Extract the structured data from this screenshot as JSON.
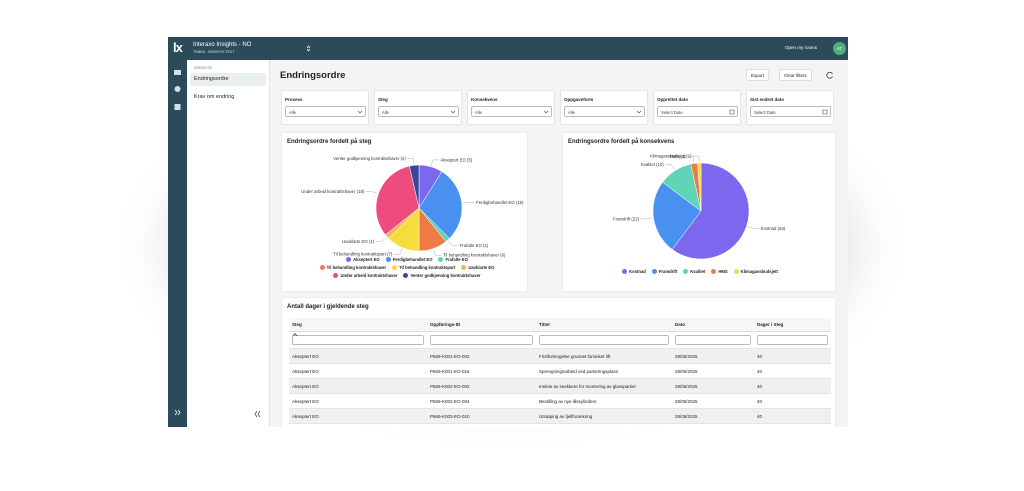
{
  "header": {
    "logo": "lx",
    "app_title": "Interaxo Insights - NO",
    "subtitle": "TRØBA - INSIGHTS TEST",
    "open_rooms": "Open my rooms",
    "avatar": "AT"
  },
  "sidebar": {
    "section": "INSIGHTS",
    "items": [
      "Endringsordre",
      "Krav om endring"
    ]
  },
  "page": {
    "title": "Endringsordre",
    "buttons": [
      "Export",
      "Clear filters"
    ]
  },
  "filters": [
    {
      "label": "Prosess",
      "value": "Alle"
    },
    {
      "label": "Steg",
      "value": "Alle"
    },
    {
      "label": "Konsekvens",
      "value": "Alle"
    },
    {
      "label": "Oppgaveform",
      "value": "Alle"
    },
    {
      "label": "Opprettet dato",
      "value": "Select Date"
    },
    {
      "label": "Sist endret dato",
      "value": "Select Date"
    }
  ],
  "chart_data": [
    {
      "type": "pie",
      "title": "Endringsordre fordelt på steg",
      "categories": [
        "Akseptert EO",
        "Ferdigbehandlet EO",
        "Frafalte EO",
        "Til behandling kontraktshaver",
        "Til behandling kontraktspart",
        "Uavklarte EO",
        "Under arbeid kontraktshaver",
        "Venter godkjenning kontraktshaver"
      ],
      "values": [
        5,
        16,
        1,
        6,
        7,
        1,
        18,
        2
      ],
      "value_labels": [
        "Akseptert EO (5)",
        "Ferdigbehandlet EO (16)",
        "Frafalte EO (1)",
        "Til behandling kontraktshaver (6)",
        "Til behandling kontraktspart (7)",
        "Uavklarte EO (1)",
        "Under arbeid kontraktshaver (18)",
        "Venter godkjenning kontraktshaver (2)"
      ],
      "colors": [
        "#7b68ee",
        "#4a90f0",
        "#5fd4b6",
        "#ee7a45",
        "#f6dc3c",
        "#f4b45c",
        "#ee4c7c",
        "#37479e"
      ],
      "legend": true
    },
    {
      "type": "pie",
      "title": "Endringsordre fordelt på konsekvens",
      "categories": [
        "Kostnad",
        "Framdrift",
        "Kvalitet",
        "HMS",
        "Klimagassbudsjett"
      ],
      "values": [
        53,
        22,
        10,
        2,
        1
      ],
      "value_labels": [
        "Kostnad (53)",
        "Framdrift (22)",
        "Kvalitet (10)",
        "HMS (2)",
        "Klimagassbudsjett (1)"
      ],
      "colors": [
        "#7b68ee",
        "#4a90f0",
        "#5fd4b6",
        "#ee7a45",
        "#f6dc3c"
      ],
      "legend": true
    }
  ],
  "table": {
    "title": "Antall dager i gjeldende steg",
    "columns": [
      "Steg",
      "Oppførings-ID",
      "Tittel",
      "Dato",
      "Dager i Steg"
    ],
    "rows": [
      [
        "Akseptert EO",
        "P669-K001-EO-002",
        "Fristforlengelse grunnet forsinket lift",
        "28/05/2025",
        40
      ],
      [
        "Akseptert EO",
        "P669-K001-EO-016",
        "Sprengningsarbeid ved parkeringsplass",
        "28/05/2025",
        40
      ],
      [
        "Akseptert EO",
        "P669-K002-EO-002",
        "Innleie av snekkere for montering av glasspartier",
        "28/05/2025",
        40
      ],
      [
        "Akseptert EO",
        "P669-K002-EO-004",
        "Bestilling av nye låssylindere",
        "28/05/2025",
        40
      ],
      [
        "Akseptert EO",
        "P669-K002-EO-010",
        "Utstøping av fjellforankring",
        "28/05/2025",
        40
      ]
    ]
  }
}
